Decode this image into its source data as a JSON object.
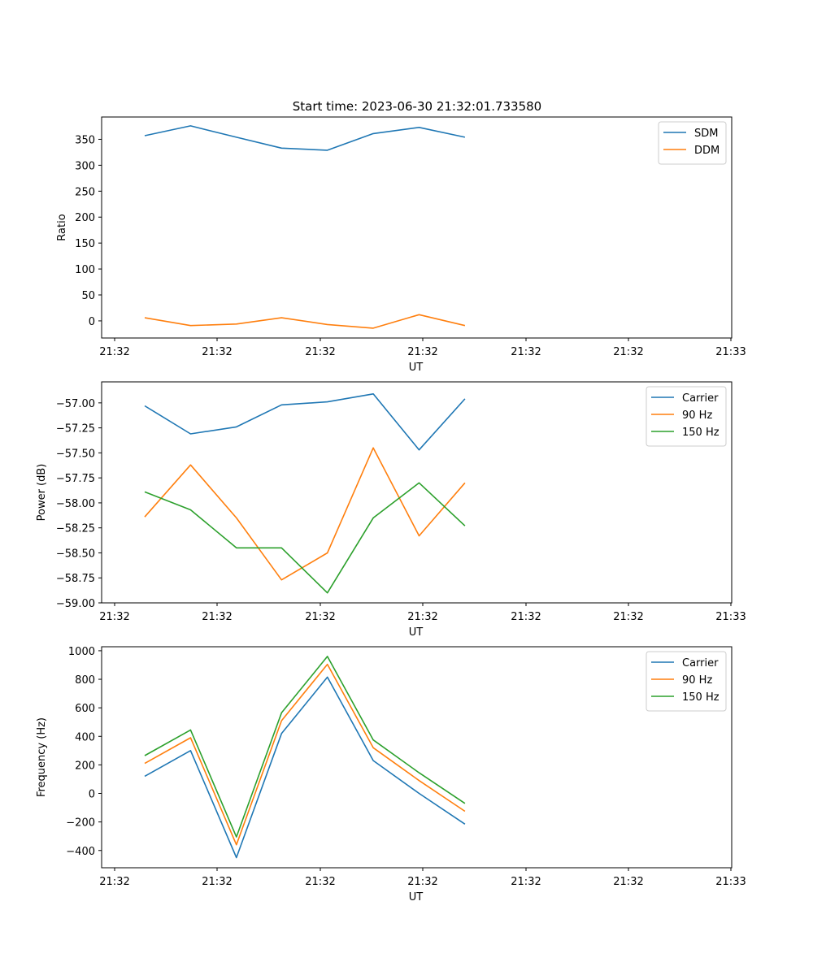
{
  "title": "Start time: 2023-06-30 21:32:01.733580",
  "chart_data": [
    {
      "type": "line",
      "ylabel": "Ratio",
      "xlabel": "UT",
      "x_tick_labels": [
        "21:32",
        "21:32",
        "21:32",
        "21:32",
        "21:32",
        "21:32",
        "21:32",
        "21:33"
      ],
      "xlim": [
        0,
        9.07
      ],
      "x": [
        0.62,
        1.28,
        1.94,
        2.59,
        3.25,
        3.91,
        4.57,
        5.23
      ],
      "ylim": [
        -33,
        393
      ],
      "yticks": [
        0,
        50,
        100,
        150,
        200,
        250,
        300,
        350
      ],
      "legend": "top-right",
      "series": [
        {
          "name": "SDM",
          "color": "#1f77b4",
          "values": [
            357,
            376,
            354,
            333,
            329,
            361,
            373,
            354
          ]
        },
        {
          "name": "DDM",
          "color": "#ff7f0e",
          "values": [
            6,
            -9,
            -6,
            6,
            -7,
            -14,
            12,
            -9
          ]
        }
      ]
    },
    {
      "type": "line",
      "ylabel": "Power (dB)",
      "xlabel": "UT",
      "x_tick_labels": [
        "21:32",
        "21:32",
        "21:32",
        "21:32",
        "21:32",
        "21:32",
        "21:32",
        "21:33"
      ],
      "xlim": [
        0,
        9.07
      ],
      "x": [
        0.62,
        1.28,
        1.94,
        2.59,
        3.25,
        3.91,
        4.57,
        5.23
      ],
      "ylim": [
        -59.0,
        -56.79
      ],
      "yticks": [
        -59.0,
        -58.75,
        -58.5,
        -58.25,
        -58.0,
        -57.75,
        -57.5,
        -57.25,
        -57.0
      ],
      "ytick_labels": [
        "−59.00",
        "−58.75",
        "−58.50",
        "−58.25",
        "−58.00",
        "−57.75",
        "−57.50",
        "−57.25",
        "−57.00"
      ],
      "legend": "top-right",
      "series": [
        {
          "name": "Carrier",
          "color": "#1f77b4",
          "values": [
            -57.03,
            -57.31,
            -57.24,
            -57.02,
            -56.99,
            -56.91,
            -57.47,
            -56.96
          ]
        },
        {
          "name": "90 Hz",
          "color": "#ff7f0e",
          "values": [
            -58.14,
            -57.62,
            -58.15,
            -58.77,
            -58.5,
            -57.45,
            -58.33,
            -57.8
          ]
        },
        {
          "name": "150 Hz",
          "color": "#2ca02c",
          "values": [
            -57.89,
            -58.07,
            -58.45,
            -58.45,
            -58.9,
            -58.15,
            -57.8,
            -58.23
          ]
        }
      ]
    },
    {
      "type": "line",
      "ylabel": "Frequency (Hz)",
      "xlabel": "UT",
      "x_tick_labels": [
        "21:32",
        "21:32",
        "21:32",
        "21:32",
        "21:32",
        "21:32",
        "21:32",
        "21:33"
      ],
      "xlim": [
        0,
        9.07
      ],
      "x": [
        0.62,
        1.28,
        1.94,
        2.59,
        3.25,
        3.91,
        4.57,
        5.23
      ],
      "ylim": [
        -521,
        1028
      ],
      "yticks": [
        -400,
        -200,
        0,
        200,
        400,
        600,
        800,
        1000
      ],
      "ytick_labels": [
        "−400",
        "−200",
        "0",
        "200",
        "400",
        "600",
        "800",
        "1000"
      ],
      "legend": "top-right",
      "series": [
        {
          "name": "Carrier",
          "color": "#1f77b4",
          "values": [
            120,
            300,
            -450,
            420,
            815,
            230,
            0,
            -215
          ]
        },
        {
          "name": "90 Hz",
          "color": "#ff7f0e",
          "values": [
            210,
            390,
            -360,
            510,
            905,
            320,
            90,
            -125
          ]
        },
        {
          "name": "150 Hz",
          "color": "#2ca02c",
          "values": [
            265,
            445,
            -305,
            565,
            960,
            375,
            145,
            -70
          ]
        }
      ]
    }
  ]
}
